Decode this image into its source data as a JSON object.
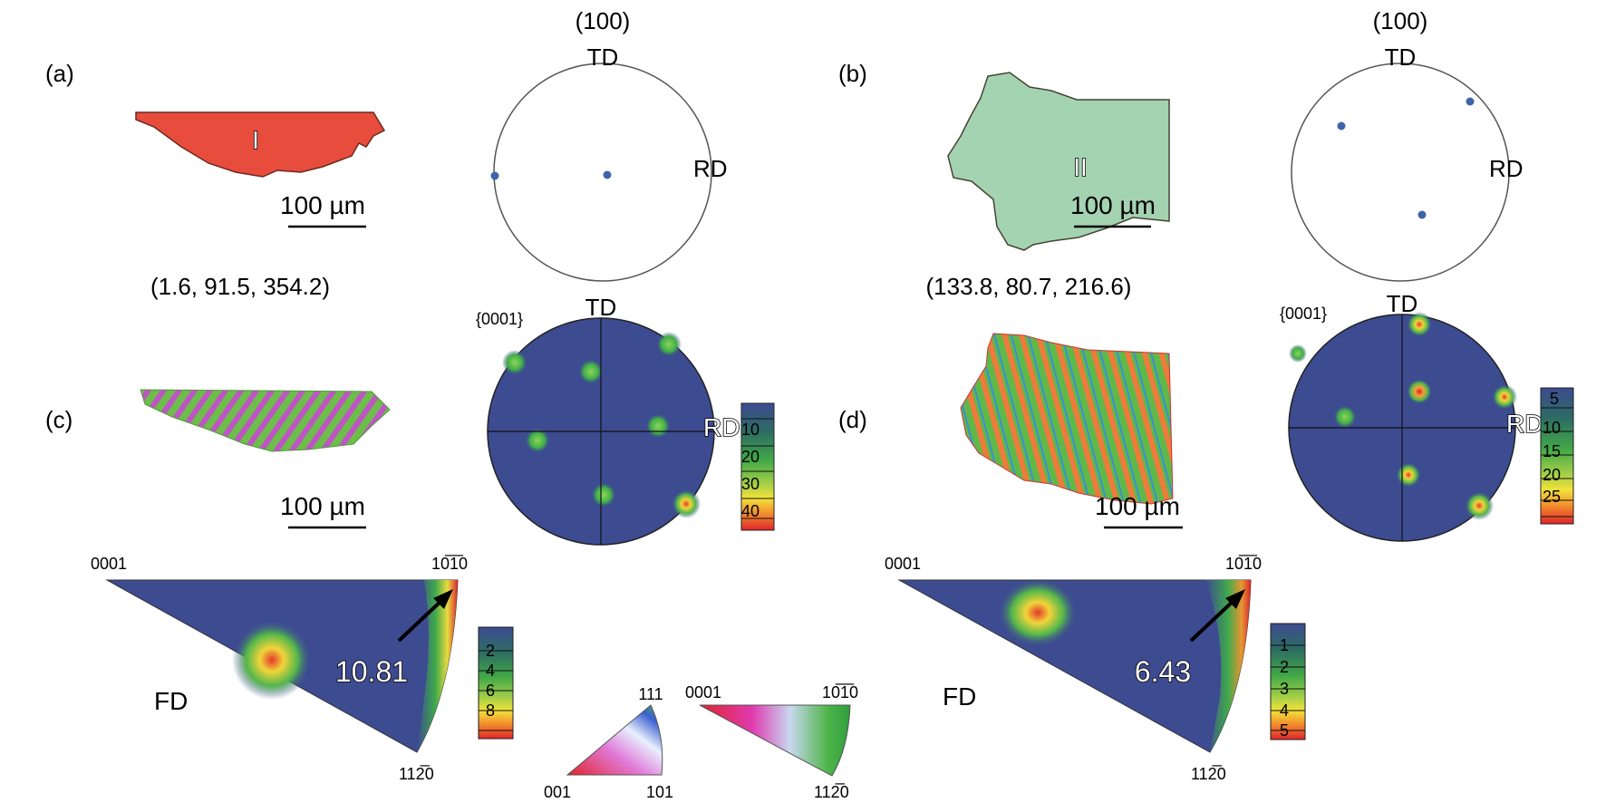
{
  "panels": {
    "a": {
      "label": "(a)",
      "grain_label": "I",
      "scale_bar": "100 µm",
      "euler": "(1.6, 91.5, 354.2)",
      "pole_figure": {
        "title": "(100)",
        "top": "TD",
        "right": "RD"
      }
    },
    "b": {
      "label": "(b)",
      "grain_label": "II",
      "scale_bar": "100 µm",
      "euler": "(133.8, 80.7, 216.6)",
      "pole_figure": {
        "title": "(100)",
        "top": "TD",
        "right": "RD"
      }
    },
    "c": {
      "label": "(c)",
      "scale_bar": "100 µm",
      "pole_figure": {
        "plane": "{0001}",
        "top": "TD",
        "right": "RD"
      },
      "colorbar_ticks": [
        "10",
        "20",
        "30",
        "40"
      ]
    },
    "d": {
      "label": "(d)",
      "scale_bar": "100 µm",
      "pole_figure": {
        "plane": "{0001}",
        "top": "TD",
        "right": "RD"
      },
      "colorbar_ticks": [
        "5",
        "10",
        "15",
        "20",
        "25"
      ]
    }
  },
  "ipf_left": {
    "corner_top_left": "0001",
    "corner_top_right": "10̅1̅0",
    "corner_bottom": "112̅0",
    "axis": "FD",
    "max_value": "10.81",
    "colorbar_ticks": [
      "2",
      "4",
      "6",
      "8"
    ]
  },
  "ipf_right": {
    "corner_top_left": "0001",
    "corner_top_right": "10̅1̅0",
    "corner_bottom": "112̅0",
    "axis": "FD",
    "max_value": "6.43",
    "colorbar_ticks": [
      "1",
      "2",
      "3",
      "4",
      "5"
    ]
  },
  "legend_cubic": {
    "top": "111",
    "bottom_left": "001",
    "bottom_right": "101"
  },
  "legend_hex": {
    "top_left": "0001",
    "top_right": "10̅1̅0",
    "bottom": "112̅0"
  },
  "colors": {
    "grain_I": "#e84c3d",
    "grain_II": "#a4d3b2",
    "pole_bg": "#3d4b91",
    "pole_point": "#3e64a8"
  }
}
